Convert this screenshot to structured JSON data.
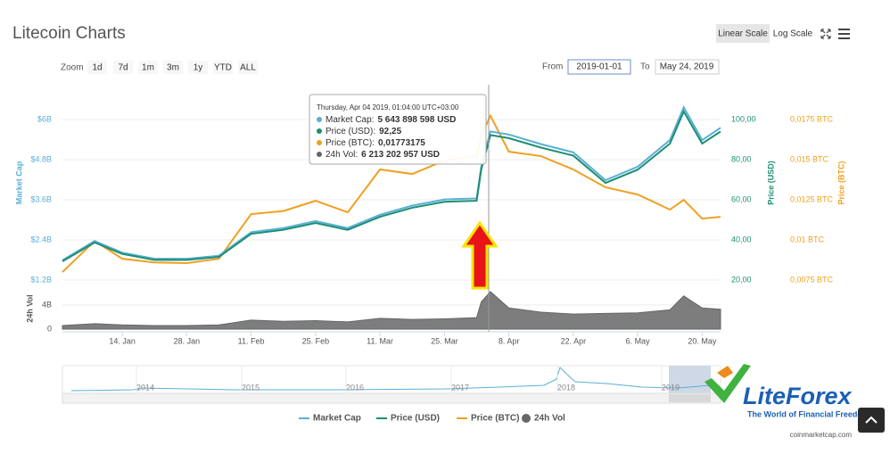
{
  "ui": {
    "title": "Litecoin Charts",
    "scale_buttons": [
      "Linear Scale",
      "Log Scale"
    ],
    "zoom_label": "Zoom",
    "zoom_buttons": [
      "1d",
      "7d",
      "1m",
      "3m",
      "1y",
      "YTD",
      "ALL"
    ],
    "from_label": "From",
    "from_value": "2019-01-01",
    "to_label": "To",
    "to_value": "May 24, 2019",
    "tooltip": {
      "header": "Thursday, Apr 04 2019, 01:04:00 UTC+03:00",
      "rows": [
        {
          "label": "Market Cap:",
          "value": "5 643 898 598 USD"
        },
        {
          "label": "Price (USD):",
          "value": "92,25"
        },
        {
          "label": "Price (BTC):",
          "value": "0,01773175"
        },
        {
          "label": "24h Vol:",
          "value": "6 213 202 957 USD"
        }
      ]
    },
    "navigator_years": [
      "2014",
      "2015",
      "2016",
      "2017",
      "2018",
      "2019"
    ],
    "source": "coinmarketcap.com",
    "logo": {
      "name": "LiteForex",
      "slogan": "The World of Financial Freedom"
    }
  },
  "chart_data": [
    {
      "type": "line",
      "ylabel": "Market Cap",
      "y2label": "Price (USD)",
      "y3label": "Price (BTC)",
      "x": [
        "2019-01-01",
        "2019-01-08",
        "2019-01-14",
        "2019-01-21",
        "2019-01-28",
        "2019-02-04",
        "2019-02-11",
        "2019-02-18",
        "2019-02-25",
        "2019-03-04",
        "2019-03-11",
        "2019-03-18",
        "2019-03-25",
        "2019-04-01",
        "2019-04-02",
        "2019-04-04",
        "2019-04-08",
        "2019-04-15",
        "2019-04-22",
        "2019-04-29",
        "2019-05-06",
        "2019-05-13",
        "2019-05-16",
        "2019-05-20",
        "2019-05-24"
      ],
      "xlim": [
        "2019-01-01",
        "2019-05-24"
      ],
      "xticks": [
        {
          "value": "2019-01-14",
          "label": "14. Jan"
        },
        {
          "value": "2019-01-28",
          "label": "28. Jan"
        },
        {
          "value": "2019-02-11",
          "label": "11. Feb"
        },
        {
          "value": "2019-02-25",
          "label": "25. Feb"
        },
        {
          "value": "2019-03-11",
          "label": "11. Mar"
        },
        {
          "value": "2019-03-25",
          "label": "25. Mar"
        },
        {
          "value": "2019-04-08",
          "label": "8. Apr"
        },
        {
          "value": "2019-04-22",
          "label": "22. Apr"
        },
        {
          "value": "2019-05-06",
          "label": "6. May"
        },
        {
          "value": "2019-05-20",
          "label": "20. May"
        }
      ],
      "ylim": [
        1040000000,
        6960000000
      ],
      "yticks": [
        {
          "value": 6000000000,
          "label": "$6B"
        },
        {
          "value": 4800000000,
          "label": "$4.8B"
        },
        {
          "value": 3600000000,
          "label": "$3.6B"
        },
        {
          "value": 2400000000,
          "label": "$2.4B"
        },
        {
          "value": 1200000000,
          "label": "$1.2B"
        }
      ],
      "y2lim": [
        17.3,
        116
      ],
      "y2ticks": [
        {
          "value": 100,
          "label": "100,00"
        },
        {
          "value": 80,
          "label": "80,00"
        },
        {
          "value": 60,
          "label": "60,00"
        },
        {
          "value": 40,
          "label": "40,00"
        },
        {
          "value": 20,
          "label": "20,00"
        }
      ],
      "y3lim": [
        0.00717,
        0.0195
      ],
      "y3ticks": [
        {
          "value": 0.0175,
          "label": "0,0175 BTC"
        },
        {
          "value": 0.015,
          "label": "0,015 BTC"
        },
        {
          "value": 0.0125,
          "label": "0,0125 BTC"
        },
        {
          "value": 0.01,
          "label": "0,01 BTC"
        },
        {
          "value": 0.0075,
          "label": "0,0075 BTC"
        }
      ],
      "grid": true,
      "series": [
        {
          "name": "Market Cap",
          "color": "#5aafd6",
          "axis": "y",
          "values": [
            1793000000,
            2368000000,
            2020000000,
            1836000000,
            1836000000,
            1928000000,
            2632000000,
            2754000000,
            2962000000,
            2754000000,
            3152000000,
            3427000000,
            3611000000,
            3641000000,
            4590000000,
            5643898598,
            5551000000,
            5263000000,
            5018000000,
            4186000000,
            4590000000,
            5386000000,
            6365000000,
            5386000000,
            5753000000
          ]
        },
        {
          "name": "Price (USD)",
          "color": "#1c8f72",
          "axis": "y2",
          "values": [
            29.3,
            38.7,
            33,
            30,
            30,
            31.5,
            43,
            45,
            48.4,
            45,
            51.5,
            56,
            59,
            59.5,
            75,
            92.25,
            90.7,
            86,
            82,
            68.4,
            75,
            88,
            104,
            88,
            94
          ]
        },
        {
          "name": "Price (BTC)",
          "color": "#f0a020",
          "axis": "y3",
          "values": [
            0.008,
            0.00994,
            0.00883,
            0.0086,
            0.00856,
            0.00883,
            0.01161,
            0.0118,
            0.01244,
            0.01172,
            0.01439,
            0.01411,
            0.01494,
            0.01522,
            0.0165,
            0.01773175,
            0.0155,
            0.01522,
            0.01439,
            0.01328,
            0.01283,
            0.01189,
            0.0125,
            0.01133,
            0.01144
          ]
        }
      ]
    },
    {
      "type": "area",
      "ylabel": "24h Vol",
      "ylim": [
        0,
        6500000000
      ],
      "yticks": [
        {
          "value": 4000000000,
          "label": "4B"
        },
        0
      ],
      "series": [
        {
          "name": "24h Vol",
          "color": "#666666",
          "values": [
            600000000,
            900000000,
            700000000,
            600000000,
            600000000,
            700000000,
            1500000000,
            1300000000,
            1400000000,
            1200000000,
            1800000000,
            1600000000,
            1700000000,
            1900000000,
            4500000000,
            6213202957,
            3500000000,
            2800000000,
            2500000000,
            2600000000,
            2700000000,
            3200000000,
            5500000000,
            3500000000,
            3300000000
          ]
        }
      ]
    }
  ]
}
